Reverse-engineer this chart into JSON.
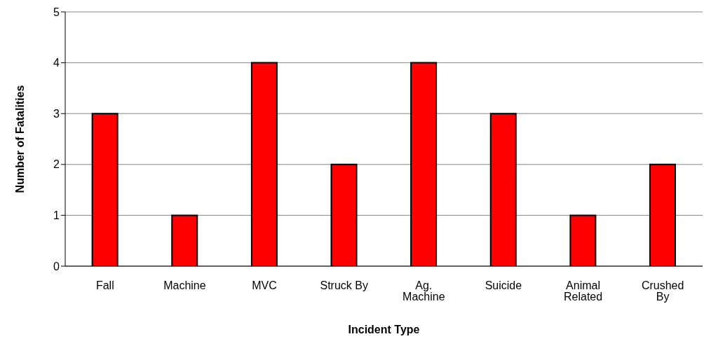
{
  "chart_data": {
    "type": "bar",
    "xlabel": "Incident Type",
    "ylabel": "Number of Fatalities",
    "categories": [
      "Fall",
      "Machine",
      "MVC",
      "Struck By",
      "Ag. Machine",
      "Suicide",
      "Animal Related",
      "Crushed By"
    ],
    "values": [
      3,
      1,
      4,
      2,
      4,
      3,
      1,
      2
    ],
    "color": "#ff0000",
    "ylim": [
      0,
      5
    ],
    "yticks": [
      0,
      1,
      2,
      3,
      4,
      5
    ],
    "grid": "y"
  }
}
